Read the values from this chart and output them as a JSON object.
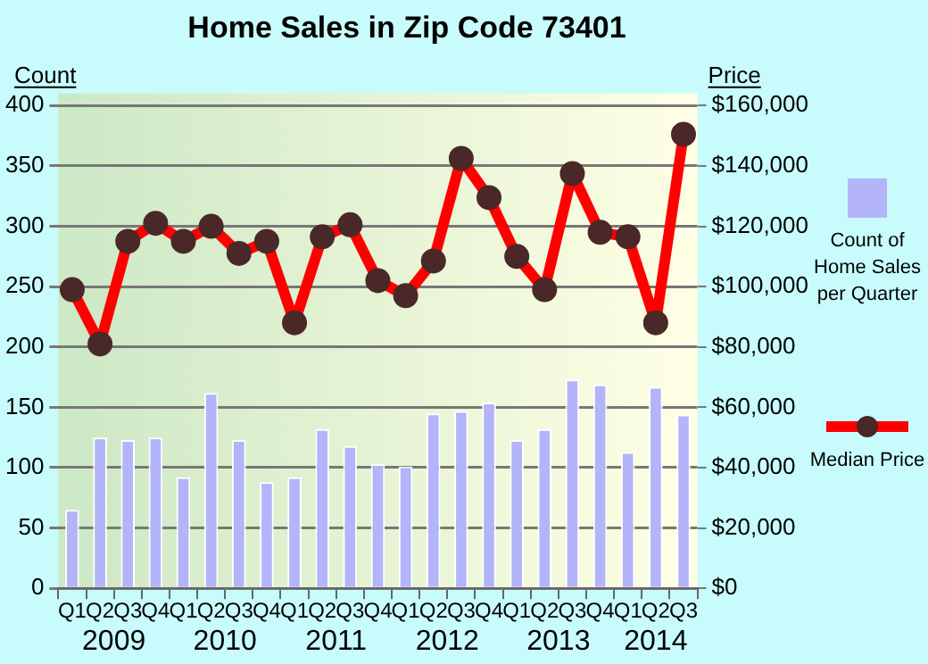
{
  "chart_data": {
    "type": "bar",
    "title": "Home Sales in Zip Code 73401",
    "ylabel": "Count",
    "y2label": "Price",
    "categories": [
      "Q1",
      "Q2",
      "Q3",
      "Q4",
      "Q1",
      "Q2",
      "Q3",
      "Q4",
      "Q1",
      "Q2",
      "Q3",
      "Q4",
      "Q1",
      "Q2",
      "Q3",
      "Q4",
      "Q1",
      "Q2",
      "Q3",
      "Q4",
      "Q1",
      "Q2",
      "Q3"
    ],
    "annotations": [
      "2009",
      "2010",
      "2011",
      "2012",
      "2013",
      "2014"
    ],
    "series": [
      {
        "name": "Count of Home Sales per Quarter",
        "color": "#b4b4fa",
        "values": [
          65,
          125,
          123,
          125,
          92,
          162,
          123,
          88,
          92,
          132,
          118,
          103,
          101,
          145,
          147,
          154,
          123,
          132,
          173,
          169,
          113,
          167,
          144
        ]
      },
      {
        "name": "Median Price",
        "type": "line",
        "axis": "y2",
        "color": "#ff0000",
        "marker": "circle",
        "values": [
          99000,
          81000,
          115000,
          121000,
          115000,
          120000,
          111000,
          115000,
          88000,
          116500,
          120500,
          102000,
          97000,
          108500,
          142500,
          129500,
          110000,
          99000,
          137500,
          118000,
          116500,
          88000,
          150500
        ]
      }
    ],
    "ylim": [
      0,
      410
    ],
    "yticks": [
      0,
      50,
      100,
      150,
      200,
      250,
      300,
      350,
      400
    ],
    "y2lim": [
      0,
      164000
    ],
    "y2ticks": [
      {
        "value": 0,
        "label": "$0"
      },
      {
        "value": 20000,
        "label": "$20,000"
      },
      {
        "value": 40000,
        "label": "$40,000"
      },
      {
        "value": 60000,
        "label": "$60,000"
      },
      {
        "value": 80000,
        "label": "$80,000"
      },
      {
        "value": 100000,
        "label": "$100,000"
      },
      {
        "value": 120000,
        "label": "$120,000"
      },
      {
        "value": 140000,
        "label": "$140,000"
      },
      {
        "value": 160000,
        "label": "$160,000"
      }
    ],
    "grid": "y",
    "legend": "right"
  }
}
